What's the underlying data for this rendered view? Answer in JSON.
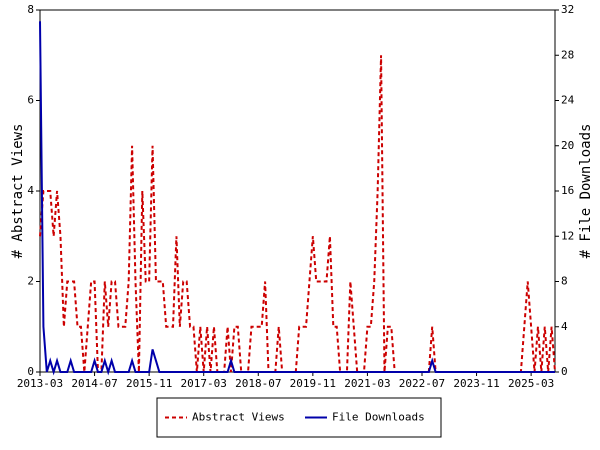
{
  "chart_data": {
    "type": "line",
    "y_label": "# Abstract Views",
    "y2_label": "# File Downloads",
    "x": [
      "2013-03",
      "2013-04",
      "2013-05",
      "2013-06",
      "2013-07",
      "2013-08",
      "2013-09",
      "2013-10",
      "2013-11",
      "2013-12",
      "2014-01",
      "2014-02",
      "2014-03",
      "2014-04",
      "2014-05",
      "2014-06",
      "2014-07",
      "2014-08",
      "2014-09",
      "2014-10",
      "2014-11",
      "2014-12",
      "2015-01",
      "2015-02",
      "2015-03",
      "2015-04",
      "2015-05",
      "2015-06",
      "2015-07",
      "2015-08",
      "2015-09",
      "2015-10",
      "2015-11",
      "2015-12",
      "2016-01",
      "2016-02",
      "2016-03",
      "2016-04",
      "2016-05",
      "2016-06",
      "2016-07",
      "2016-08",
      "2016-09",
      "2016-10",
      "2016-11",
      "2016-12",
      "2017-01",
      "2017-02",
      "2017-03",
      "2017-04",
      "2017-05",
      "2017-06",
      "2017-07",
      "2017-08",
      "2017-09",
      "2017-10",
      "2017-11",
      "2017-12",
      "2018-01",
      "2018-02",
      "2018-03",
      "2018-04",
      "2018-05",
      "2018-06",
      "2018-07",
      "2018-08",
      "2018-09",
      "2018-10",
      "2018-11",
      "2018-12",
      "2019-01",
      "2019-02",
      "2019-03",
      "2019-04",
      "2019-05",
      "2019-06",
      "2019-07",
      "2019-08",
      "2019-09",
      "2019-10",
      "2019-11",
      "2019-12",
      "2020-01",
      "2020-02",
      "2020-03",
      "2020-04",
      "2020-05",
      "2020-06",
      "2020-07",
      "2020-08",
      "2020-09",
      "2020-10",
      "2020-11",
      "2020-12",
      "2021-01",
      "2021-02",
      "2021-03",
      "2021-04",
      "2021-05",
      "2021-06",
      "2021-07",
      "2021-08",
      "2021-09",
      "2021-10",
      "2021-11",
      "2021-12",
      "2022-01",
      "2022-02",
      "2022-03",
      "2022-04",
      "2022-05",
      "2022-06",
      "2022-07",
      "2022-08",
      "2022-09",
      "2022-10",
      "2022-11",
      "2022-12",
      "2023-01",
      "2023-02",
      "2023-03",
      "2023-04",
      "2023-05",
      "2023-06",
      "2023-07",
      "2023-08",
      "2023-09",
      "2023-10",
      "2023-11",
      "2023-12",
      "2024-01",
      "2024-02",
      "2024-03",
      "2024-04",
      "2024-05",
      "2024-06",
      "2024-07",
      "2024-08",
      "2024-09",
      "2024-10",
      "2024-11",
      "2024-12",
      "2025-01",
      "2025-02",
      "2025-03",
      "2025-04",
      "2025-05",
      "2025-06",
      "2025-07",
      "2025-08",
      "2025-09",
      "2025-10"
    ],
    "series": [
      {
        "name": "Abstract Views",
        "color": "#cc0000",
        "dashed": true,
        "values": [
          3,
          4,
          4,
          4,
          3,
          4,
          3,
          1,
          2,
          2,
          2,
          1,
          1,
          0,
          1,
          2,
          2,
          0,
          0,
          2,
          1,
          2,
          2,
          1,
          1,
          1,
          2,
          5,
          2,
          0,
          4,
          2,
          2,
          5,
          2,
          2,
          2,
          1,
          1,
          1,
          3,
          1,
          2,
          2,
          1,
          1,
          0,
          1,
          0,
          1,
          0,
          1,
          0,
          0,
          0,
          1,
          0,
          1,
          1,
          0,
          0,
          0,
          1,
          1,
          1,
          1,
          2,
          0,
          0,
          0,
          1,
          0,
          0,
          0,
          0,
          0,
          1,
          1,
          1,
          2,
          3,
          2,
          2,
          2,
          2,
          3,
          1,
          1,
          0,
          0,
          0,
          2,
          1,
          0,
          0,
          0,
          1,
          1,
          2,
          4,
          7,
          0,
          1,
          1,
          0,
          0,
          0,
          0,
          0,
          0,
          0,
          0,
          0,
          0,
          0,
          1,
          0,
          0,
          0,
          0,
          0,
          0,
          0,
          0,
          0,
          0,
          0,
          0,
          0,
          0,
          0,
          0,
          0,
          0,
          0,
          0,
          0,
          0,
          0,
          0,
          0,
          0,
          1,
          2,
          1,
          0,
          1,
          0,
          1,
          0,
          1,
          0
        ]
      },
      {
        "name": "File Downloads",
        "color": "#0000aa",
        "dashed": false,
        "axis": "y2",
        "values": [
          31,
          4,
          0,
          1,
          0,
          1,
          0,
          0,
          0,
          1,
          0,
          0,
          0,
          0,
          0,
          0,
          1,
          0,
          0,
          1,
          0,
          1,
          0,
          0,
          0,
          0,
          0,
          1,
          0,
          0,
          0,
          0,
          0,
          2,
          1,
          0,
          0,
          0,
          0,
          0,
          0,
          0,
          0,
          0,
          0,
          0,
          0,
          0,
          0,
          0,
          0,
          0,
          0,
          0,
          0,
          0,
          1,
          0,
          0,
          0,
          0,
          0,
          0,
          0,
          0,
          0,
          0,
          0,
          0,
          0,
          0,
          0,
          0,
          0,
          0,
          0,
          0,
          0,
          0,
          0,
          0,
          0,
          0,
          0,
          0,
          0,
          0,
          0,
          0,
          0,
          0,
          0,
          0,
          0,
          0,
          0,
          0,
          0,
          0,
          0,
          0,
          0,
          0,
          0,
          0,
          0,
          0,
          0,
          0,
          0,
          0,
          0,
          0,
          0,
          0,
          1,
          0,
          0,
          0,
          0,
          0,
          0,
          0,
          0,
          0,
          0,
          0,
          0,
          0,
          0,
          0,
          0,
          0,
          0,
          0,
          0,
          0,
          0,
          0,
          0,
          0,
          0,
          0,
          0,
          0,
          0,
          0,
          0,
          0,
          0,
          0,
          0
        ]
      }
    ],
    "xticks": [
      "2013-03",
      "2014-07",
      "2015-11",
      "2017-03",
      "2018-07",
      "2019-11",
      "2021-03",
      "2022-07",
      "2023-11",
      "2025-03"
    ],
    "ylim": [
      0,
      8
    ],
    "yticks": [
      0,
      2,
      4,
      6,
      8
    ],
    "y2lim": [
      0,
      32
    ],
    "y2ticks": [
      0,
      4,
      8,
      12,
      16,
      20,
      24,
      28,
      32
    ],
    "grid": false,
    "legend": "bottom"
  }
}
